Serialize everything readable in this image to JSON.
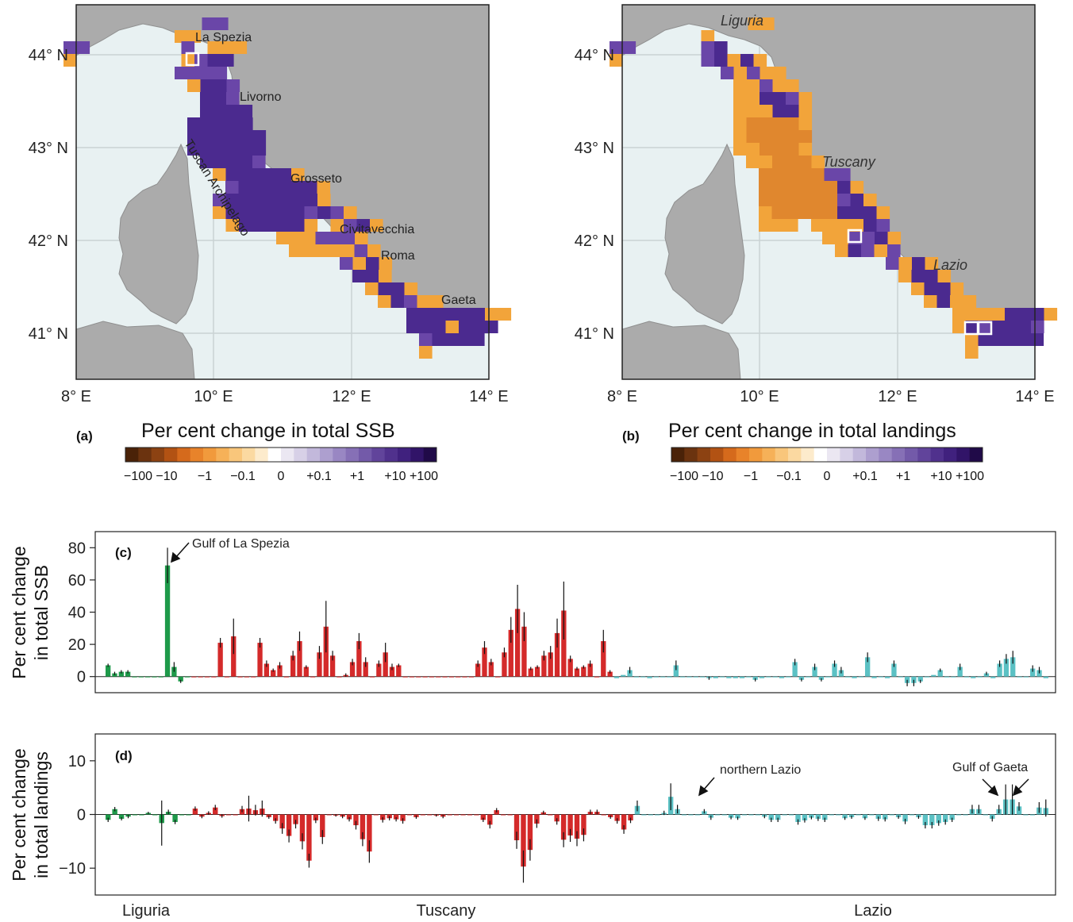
{
  "maps": {
    "lat_ticks": [
      "44° N",
      "43° N",
      "42° N",
      "41° N"
    ],
    "lon_ticks": [
      "8° E",
      "10° E",
      "12° E",
      "14° E"
    ],
    "a": {
      "panel_label": "(a)",
      "colorbar_title": "Per cent change in total SSB",
      "places": [
        "La Spezia",
        "Livorno",
        "Grosseto",
        "Civitavecchia",
        "Roma",
        "Gaeta"
      ],
      "archipelago": "Tuscan Archipelago"
    },
    "b": {
      "panel_label": "(b)",
      "colorbar_title": "Per cent change in total landings",
      "regions": [
        "Liguria",
        "Tuscany",
        "Lazio"
      ]
    },
    "colorbar_ticks": [
      "−100",
      "−10",
      "−1",
      "−0.1",
      "0",
      "+0.1",
      "+1",
      "+10",
      "+100"
    ],
    "colors": {
      "sea": "#e8f1f2",
      "land": "#ababab",
      "grid": "#c9d2d3",
      "negative": "#f2a43a",
      "negative_strong": "#e0872e",
      "positive": "#6a46a8",
      "positive_strong": "#4b2a8f"
    }
  },
  "chart_data": [
    {
      "type": "bar",
      "panel_label": "(c)",
      "ylabel": [
        "Per cent change",
        "in total SSB"
      ],
      "ylim": [
        -10,
        90
      ],
      "yticks": [
        0,
        20,
        40,
        60,
        80
      ],
      "annotation": "Gulf of La Spezia",
      "groups": [
        {
          "name": "Liguria",
          "color": "#1e9a4a",
          "values": [
            7,
            2,
            3,
            3,
            0,
            0,
            0,
            0,
            0,
            69,
            6,
            -3,
            0
          ],
          "errors": [
            1,
            1,
            1,
            1,
            0,
            0,
            0,
            0,
            0,
            11,
            3,
            1,
            0
          ]
        },
        {
          "name": "Tuscany",
          "color": "#d42a2a",
          "values": [
            0,
            0,
            0,
            0,
            21,
            0,
            25,
            0,
            0,
            0,
            21,
            8,
            4,
            7,
            0,
            13,
            22,
            6,
            0,
            15,
            31,
            13,
            0,
            1,
            9,
            22,
            9,
            0,
            8,
            15,
            6,
            7,
            0,
            0,
            0,
            0,
            0,
            0,
            0,
            0,
            0,
            0,
            0,
            8,
            18,
            9,
            0,
            15,
            29,
            42,
            31,
            5,
            6,
            13,
            15,
            27,
            41,
            11,
            5,
            6,
            8,
            0,
            22,
            3
          ],
          "errors": [
            0,
            0,
            0,
            0,
            3,
            0,
            11,
            0,
            0,
            0,
            3,
            2,
            1,
            2,
            0,
            3,
            6,
            1,
            0,
            4,
            16,
            3,
            0,
            1,
            2,
            5,
            3,
            0,
            2,
            6,
            2,
            1,
            0,
            0,
            0,
            0,
            0,
            0,
            0,
            0,
            0,
            0,
            0,
            2,
            4,
            2,
            0,
            3,
            8,
            15,
            9,
            1,
            1,
            3,
            4,
            9,
            18,
            2,
            1,
            1,
            2,
            0,
            7,
            1
          ]
        },
        {
          "name": "Lazio",
          "color": "#5bc1c4",
          "values": [
            -1,
            1,
            4,
            0,
            0,
            -1,
            0,
            0,
            0,
            7,
            0,
            0,
            0,
            0,
            -1,
            -1,
            0,
            -1,
            -1,
            -1,
            0,
            -2,
            -1,
            0,
            0,
            -1,
            0,
            9,
            -2,
            0,
            6,
            -2,
            0,
            8,
            4,
            0,
            -1,
            0,
            12,
            -1,
            0,
            -1,
            8,
            0,
            -4,
            -4,
            -3,
            0,
            1,
            4,
            0,
            0,
            6,
            0,
            -1,
            0,
            2,
            -1,
            8,
            11,
            12,
            0,
            0,
            5,
            4,
            -1
          ],
          "errors": [
            0,
            0,
            2,
            0,
            0,
            0,
            0,
            0,
            0,
            3,
            0,
            0,
            0,
            0,
            1,
            0,
            0,
            0,
            0,
            0,
            0,
            1,
            0,
            0,
            0,
            0,
            0,
            2,
            1,
            0,
            2,
            1,
            0,
            2,
            2,
            0,
            0,
            0,
            3,
            0,
            0,
            0,
            2,
            0,
            2,
            2,
            1,
            0,
            0,
            1,
            0,
            0,
            2,
            0,
            0,
            0,
            1,
            0,
            2,
            3,
            4,
            0,
            0,
            2,
            2,
            0
          ]
        }
      ]
    },
    {
      "type": "bar",
      "panel_label": "(d)",
      "ylabel": [
        "Per cent change",
        "in total landings"
      ],
      "ylim": [
        -15,
        15
      ],
      "yticks": [
        -10,
        0,
        10
      ],
      "annotations": [
        "northern Lazio",
        "Gulf of Gaeta"
      ],
      "groups": [
        {
          "name": "Liguria",
          "color": "#1e9a4a",
          "values": [
            -1,
            1,
            -0.8,
            -0.4,
            0,
            0,
            0.3,
            0,
            -1.6,
            0.5,
            -1.4,
            0,
            0
          ],
          "errors": [
            0.4,
            0.4,
            0.3,
            0.3,
            0,
            0,
            0.2,
            0,
            4.2,
            0.4,
            0.4,
            0,
            0
          ]
        },
        {
          "name": "Tuscany",
          "color": "#d42a2a",
          "values": [
            1.1,
            -0.4,
            0.3,
            1.3,
            -0.3,
            0,
            0,
            1,
            1.1,
            0.8,
            1.1,
            -0.5,
            -1.2,
            -2.6,
            -4,
            -1.8,
            -5,
            -8.6,
            -1.1,
            -4.2,
            0,
            -0.2,
            -0.4,
            -0.9,
            -2,
            -4.6,
            -6.9,
            0,
            -1,
            -0.7,
            -0.9,
            -1.2,
            0,
            -0.5,
            0,
            0,
            -0.2,
            -0.4,
            0,
            0,
            0,
            0,
            0,
            -1,
            -1.9,
            0.8,
            0,
            0,
            -4.8,
            -9.7,
            -6.6,
            -1.7,
            0.4,
            0,
            -1.3,
            -4.7,
            -3.9,
            -4.5,
            -3.8,
            0.5,
            0.5,
            0,
            -0.5,
            -1.2,
            -2.8,
            -1.1
          ],
          "errors": [
            0.4,
            0.3,
            0.3,
            0.5,
            0.3,
            0,
            0,
            0.6,
            2.4,
            1,
            1.5,
            0.3,
            0.5,
            1,
            1.2,
            0.8,
            1.5,
            1.3,
            0.5,
            1.3,
            0,
            0.2,
            0.3,
            0.4,
            0.8,
            1.3,
            2.1,
            0,
            0.5,
            0.4,
            0.4,
            0.5,
            0,
            0.3,
            0,
            0,
            0.2,
            0.3,
            0,
            0,
            0,
            0,
            0,
            0.4,
            0.7,
            0.4,
            0,
            0,
            1.6,
            3,
            2,
            0.8,
            0.3,
            0,
            0.6,
            1.4,
            1.2,
            1.4,
            1.2,
            0.4,
            0.4,
            0,
            0.3,
            0.5,
            0.8,
            0.5
          ]
        },
        {
          "name": "Lazio",
          "color": "#5bc1c4",
          "values": [
            1.6,
            0,
            0,
            0,
            0.3,
            3.3,
            1,
            0,
            0,
            0,
            0.6,
            -0.6,
            0,
            0,
            -0.6,
            -0.7,
            0,
            0,
            0,
            -0.4,
            -1,
            -1,
            0,
            0,
            -1.4,
            -1.1,
            -0.6,
            -0.8,
            -1,
            0,
            0,
            -0.7,
            -0.5,
            0,
            -0.7,
            0,
            -0.8,
            -0.9,
            0,
            -0.5,
            -1.3,
            0,
            -0.5,
            -2,
            -2,
            -1.6,
            -1.4,
            -1,
            0,
            0,
            1,
            1,
            0,
            -0.8,
            1,
            2.8,
            2.8,
            1.5,
            0,
            0,
            1.3,
            1.2
          ],
          "errors": [
            1,
            0,
            0,
            0,
            0.4,
            2.5,
            0.8,
            0,
            0,
            0,
            0.4,
            0.4,
            0,
            0,
            0.3,
            0.3,
            0,
            0,
            0,
            0.3,
            0.4,
            0.4,
            0,
            0,
            0.5,
            0.4,
            0.3,
            0.4,
            0.4,
            0,
            0,
            0.3,
            0.3,
            0,
            0.3,
            0,
            0.4,
            0.4,
            0,
            0.3,
            0.5,
            0,
            0.3,
            0.6,
            0.6,
            0.5,
            0.5,
            0.4,
            0,
            0,
            0.8,
            0.8,
            0,
            0.5,
            0.8,
            2.8,
            2.8,
            0.8,
            0,
            0,
            1,
            1.6
          ]
        }
      ]
    }
  ],
  "region_labels": [
    "Liguria",
    "Tuscany",
    "Lazio"
  ]
}
